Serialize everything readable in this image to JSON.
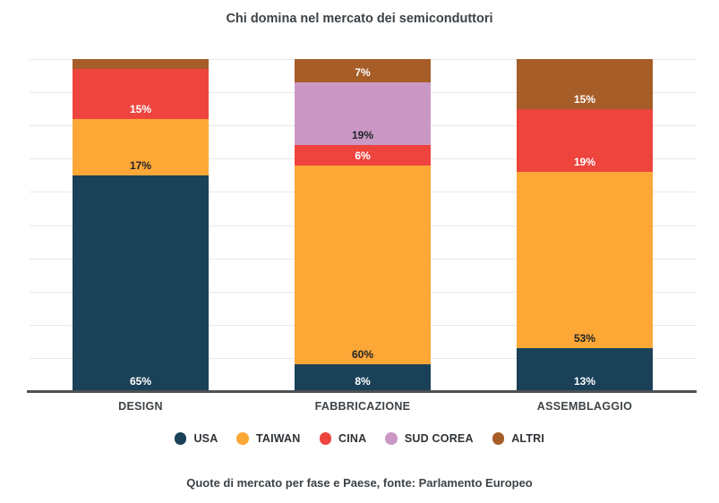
{
  "title": "Chi domina nel mercato dei semiconduttori",
  "footer": "Quote di mercato per fase e Paese, fonte: Parlamento Europeo",
  "colors": {
    "grid": "#e8e8ea",
    "axis": "#4d5055",
    "title_text": "#3d4246",
    "axis_label_text": "#3f4448"
  },
  "chart_data": {
    "type": "bar",
    "stacked": true,
    "title": "Chi domina nel mercato dei semiconduttori",
    "caption": "Quote di mercato per fase e Paese, fonte: Parlamento Europeo",
    "categories": [
      "DESIGN",
      "FABBRICAZIONE",
      "ASSEMBLAGGIO"
    ],
    "series": [
      {
        "name": "USA",
        "color": "#1a4158",
        "label_text_color": "#ffffff",
        "values": [
          65,
          8,
          13
        ],
        "labels": [
          "65%",
          "8%",
          "13%"
        ]
      },
      {
        "name": "TAIWAN",
        "color": "#fda737",
        "label_text_color": "#1f2328",
        "values": [
          17,
          60,
          53
        ],
        "labels": [
          "17%",
          "60%",
          "53%"
        ]
      },
      {
        "name": "CINA",
        "color": "#ee443e",
        "label_text_color": "#ffffff",
        "values": [
          15,
          6,
          19
        ],
        "labels": [
          "15%",
          "6%",
          "19%"
        ]
      },
      {
        "name": "SUD COREA",
        "color": "#ca98c5",
        "label_text_color": "#1f2328",
        "values": [
          0,
          19,
          0
        ],
        "labels": [
          null,
          "19%",
          null
        ]
      },
      {
        "name": "ALTRI",
        "color": "#a65d28",
        "label_text_color": "#ffffff",
        "values": [
          3,
          7,
          15
        ],
        "labels": [
          null,
          "7%",
          "15%"
        ]
      }
    ],
    "ylim": [
      0,
      100
    ],
    "grid_interval": 10,
    "grid_on": true,
    "legend_position": "bottom",
    "legend_entries": [
      "USA",
      "TAIWAN",
      "CINA",
      "SUD COREA",
      "ALTRI"
    ]
  }
}
